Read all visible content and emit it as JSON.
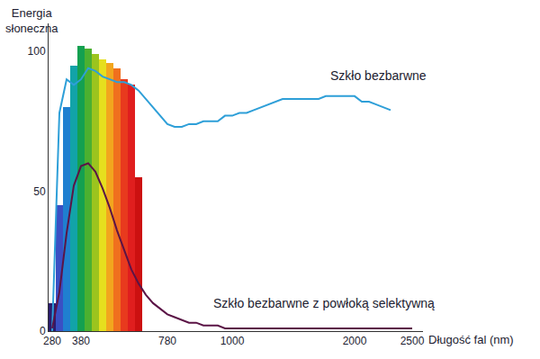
{
  "chart_data": {
    "type": "line",
    "ylabel": "Energia\nsłoneczna",
    "xlabel": "Długość fal (nm)",
    "categories": [
      280,
      null,
      null,
      null,
      380,
      null,
      null,
      null,
      null,
      null,
      null,
      null,
      null,
      null,
      null,
      null,
      780,
      null,
      null,
      null,
      null,
      null,
      null,
      null,
      null,
      1000,
      null,
      null,
      null,
      null,
      null,
      null,
      null,
      null,
      null,
      null,
      null,
      null,
      null,
      null,
      null,
      null,
      2000,
      null,
      null,
      null,
      null,
      null,
      null,
      null,
      2500,
      null
    ],
    "ylim": [
      0,
      110
    ],
    "yticks": [
      0,
      50,
      100
    ],
    "grid": false,
    "series": [
      {
        "type": "bar",
        "colors": [
          "#2b1b6e",
          "#3a4fc4",
          "#1f7fd0",
          "#12a3a8",
          "#14a050",
          "#4cb030",
          "#9cc41e",
          "#e6df1e",
          "#f2a61e",
          "#f0701e",
          "#e83a1e",
          "#e01e1e",
          "#cc1010",
          null,
          null,
          null,
          null,
          null,
          null,
          null,
          null,
          null,
          null,
          null,
          null,
          null,
          null,
          null,
          null,
          null,
          null,
          null,
          null,
          null,
          null,
          null,
          null,
          null,
          null,
          null,
          null,
          null,
          null,
          null,
          null,
          null,
          null,
          null,
          null,
          null,
          null,
          null
        ],
        "values": [
          10,
          45,
          80,
          95,
          102,
          101,
          99,
          97,
          96,
          94,
          90,
          88,
          55,
          null,
          null,
          null,
          null,
          null,
          null,
          null,
          null,
          null,
          null,
          null,
          null,
          null,
          null,
          null,
          null,
          null,
          null,
          null,
          null,
          null,
          null,
          null,
          null,
          null,
          null,
          null,
          null,
          null,
          null,
          null,
          null,
          null,
          null,
          null,
          null,
          null,
          null,
          null
        ]
      },
      {
        "name": "Szkło bezbarwne",
        "color": "#2e9fd8",
        "values": [
          0,
          78,
          90,
          88,
          90,
          94,
          93,
          91,
          90,
          89,
          89,
          88,
          86,
          83,
          80,
          77,
          74,
          73,
          73,
          74,
          74,
          75,
          75,
          75,
          77,
          77,
          78,
          78,
          79,
          80,
          81,
          82,
          83,
          83,
          83,
          83,
          83,
          83,
          84,
          84,
          84,
          84,
          84,
          82,
          82,
          81,
          80,
          79,
          null,
          null,
          null,
          null
        ]
      },
      {
        "name": "Szkło bezbarwne z powłoką selektywną",
        "color": "#5b1446",
        "values": [
          1,
          14,
          35,
          52,
          59,
          60,
          57,
          51,
          44,
          36,
          29,
          22,
          17,
          13,
          10,
          8,
          6,
          5,
          4,
          3,
          3,
          2,
          2,
          2,
          1,
          1,
          1,
          1,
          1,
          1,
          1,
          1,
          1,
          1,
          1,
          1,
          1,
          1,
          1,
          1,
          1,
          1,
          1,
          1,
          1,
          1,
          1,
          1,
          1,
          1,
          1,
          null
        ]
      }
    ]
  }
}
